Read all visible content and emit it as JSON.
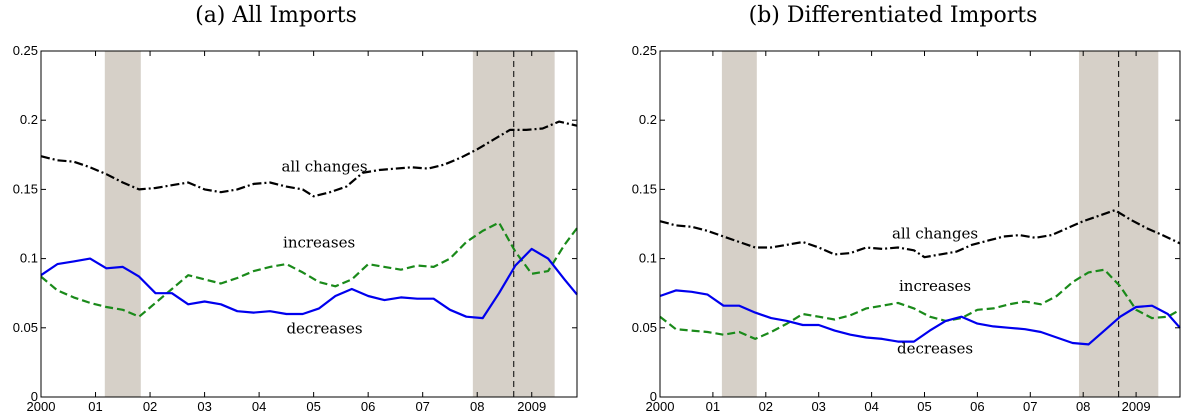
{
  "chart_data": [
    {
      "type": "line",
      "title": "(a)  All Imports",
      "xlim": [
        2000,
        2009.83
      ],
      "ylim": [
        0,
        0.25
      ],
      "yticks": [
        0,
        0.05,
        0.1,
        0.15,
        0.2,
        0.25
      ],
      "ytick_labels": [
        "0",
        "0.05",
        "0.1",
        "0.15",
        "0.2",
        "0.25"
      ],
      "xticks": [
        2000,
        2001,
        2002,
        2003,
        2004,
        2005,
        2006,
        2007,
        2008,
        2009
      ],
      "xtick_labels": [
        "2000",
        "01",
        "02",
        "03",
        "04",
        "05",
        "06",
        "07",
        "08",
        "2009"
      ],
      "shaded_periods": [
        [
          2001.17,
          2001.83
        ],
        [
          2007.92,
          2009.42
        ]
      ],
      "vertical_line": 2008.67,
      "annotations": [
        {
          "text": "all changes",
          "x": 2005.2,
          "y": 0.163
        },
        {
          "text": "increases",
          "x": 2005.1,
          "y": 0.108
        },
        {
          "text": "decreases",
          "x": 2005.2,
          "y": 0.046
        }
      ],
      "series": [
        {
          "key": "all",
          "color": "#000000",
          "style": "dashdot",
          "x": [
            2000,
            2000.3,
            2000.6,
            2000.9,
            2001.2,
            2001.5,
            2001.8,
            2002.1,
            2002.4,
            2002.7,
            2003.0,
            2003.3,
            2003.6,
            2003.9,
            2004.2,
            2004.5,
            2004.8,
            2005.0,
            2005.3,
            2005.6,
            2005.9,
            2006.2,
            2006.5,
            2006.8,
            2007.1,
            2007.4,
            2007.7,
            2008.0,
            2008.3,
            2008.6,
            2008.9,
            2009.2,
            2009.5,
            2009.83
          ],
          "y": [
            0.174,
            0.171,
            0.17,
            0.166,
            0.161,
            0.155,
            0.15,
            0.151,
            0.153,
            0.155,
            0.15,
            0.148,
            0.15,
            0.154,
            0.155,
            0.152,
            0.15,
            0.145,
            0.148,
            0.152,
            0.162,
            0.164,
            0.165,
            0.166,
            0.165,
            0.168,
            0.173,
            0.179,
            0.186,
            0.193,
            0.193,
            0.194,
            0.199,
            0.196
          ]
        },
        {
          "key": "increases",
          "color": "#1a8a1a",
          "style": "dashed",
          "x": [
            2000,
            2000.3,
            2000.6,
            2000.9,
            2001.2,
            2001.5,
            2001.8,
            2002.1,
            2002.4,
            2002.7,
            2003.0,
            2003.3,
            2003.6,
            2003.9,
            2004.2,
            2004.5,
            2004.8,
            2005.1,
            2005.4,
            2005.7,
            2006.0,
            2006.3,
            2006.6,
            2006.9,
            2007.2,
            2007.5,
            2007.8,
            2008.1,
            2008.4,
            2008.7,
            2009.0,
            2009.3,
            2009.6,
            2009.83
          ],
          "y": [
            0.087,
            0.077,
            0.072,
            0.068,
            0.065,
            0.063,
            0.058,
            0.068,
            0.078,
            0.088,
            0.085,
            0.082,
            0.086,
            0.091,
            0.094,
            0.096,
            0.09,
            0.083,
            0.08,
            0.085,
            0.096,
            0.094,
            0.092,
            0.095,
            0.094,
            0.1,
            0.112,
            0.12,
            0.126,
            0.105,
            0.089,
            0.091,
            0.11,
            0.122
          ]
        },
        {
          "key": "decreases",
          "color": "#0000ee",
          "style": "solid",
          "x": [
            2000,
            2000.3,
            2000.6,
            2000.9,
            2001.2,
            2001.5,
            2001.8,
            2002.1,
            2002.4,
            2002.7,
            2003.0,
            2003.3,
            2003.6,
            2003.9,
            2004.2,
            2004.5,
            2004.8,
            2005.1,
            2005.4,
            2005.7,
            2006.0,
            2006.3,
            2006.6,
            2006.9,
            2007.2,
            2007.5,
            2007.8,
            2008.1,
            2008.4,
            2008.7,
            2009.0,
            2009.3,
            2009.6,
            2009.83
          ],
          "y": [
            0.088,
            0.096,
            0.098,
            0.1,
            0.093,
            0.094,
            0.087,
            0.075,
            0.075,
            0.067,
            0.069,
            0.067,
            0.062,
            0.061,
            0.062,
            0.06,
            0.06,
            0.064,
            0.073,
            0.078,
            0.073,
            0.07,
            0.072,
            0.071,
            0.071,
            0.063,
            0.058,
            0.057,
            0.075,
            0.095,
            0.107,
            0.1,
            0.085,
            0.074
          ]
        }
      ]
    },
    {
      "type": "line",
      "title": "(b)  Differentiated Imports",
      "xlim": [
        2000,
        2009.83
      ],
      "ylim": [
        0,
        0.25
      ],
      "yticks": [
        0,
        0.05,
        0.1,
        0.15,
        0.2,
        0.25
      ],
      "ytick_labels": [
        "0",
        "0.05",
        "0.1",
        "0.15",
        "0.2",
        "0.25"
      ],
      "xticks": [
        2000,
        2001,
        2002,
        2003,
        2004,
        2005,
        2006,
        2007,
        2008,
        2009
      ],
      "xtick_labels": [
        "2000",
        "01",
        "02",
        "03",
        "04",
        "05",
        "06",
        "07",
        "08",
        "2009"
      ],
      "shaded_periods": [
        [
          2001.17,
          2001.83
        ],
        [
          2007.92,
          2009.42
        ]
      ],
      "vertical_line": 2008.67,
      "annotations": [
        {
          "text": "all changes",
          "x": 2005.2,
          "y": 0.1145
        },
        {
          "text": "increases",
          "x": 2005.2,
          "y": 0.0765
        },
        {
          "text": "decreases",
          "x": 2005.2,
          "y": 0.0315
        }
      ],
      "series": [
        {
          "key": "all",
          "color": "#000000",
          "style": "dashdot",
          "x": [
            2000,
            2000.3,
            2000.6,
            2000.9,
            2001.2,
            2001.5,
            2001.8,
            2002.1,
            2002.4,
            2002.7,
            2003.0,
            2003.3,
            2003.6,
            2003.9,
            2004.2,
            2004.5,
            2004.8,
            2005.0,
            2005.3,
            2005.6,
            2005.9,
            2006.2,
            2006.5,
            2006.8,
            2007.1,
            2007.4,
            2007.7,
            2008.0,
            2008.3,
            2008.6,
            2008.9,
            2009.2,
            2009.5,
            2009.83
          ],
          "y": [
            0.127,
            0.124,
            0.123,
            0.12,
            0.116,
            0.112,
            0.108,
            0.108,
            0.11,
            0.112,
            0.108,
            0.103,
            0.104,
            0.108,
            0.107,
            0.108,
            0.106,
            0.101,
            0.103,
            0.105,
            0.11,
            0.113,
            0.116,
            0.117,
            0.115,
            0.117,
            0.122,
            0.127,
            0.131,
            0.135,
            0.128,
            0.122,
            0.117,
            0.111
          ]
        },
        {
          "key": "increases",
          "color": "#1a8a1a",
          "style": "dashed",
          "x": [
            2000,
            2000.3,
            2000.6,
            2000.9,
            2001.2,
            2001.5,
            2001.8,
            2002.1,
            2002.4,
            2002.7,
            2003.0,
            2003.3,
            2003.6,
            2003.9,
            2004.2,
            2004.5,
            2004.8,
            2005.1,
            2005.4,
            2005.7,
            2006.0,
            2006.3,
            2006.6,
            2006.9,
            2007.2,
            2007.5,
            2007.8,
            2008.1,
            2008.4,
            2008.7,
            2009.0,
            2009.3,
            2009.6,
            2009.83
          ],
          "y": [
            0.058,
            0.049,
            0.048,
            0.047,
            0.045,
            0.047,
            0.042,
            0.047,
            0.053,
            0.06,
            0.058,
            0.056,
            0.059,
            0.064,
            0.066,
            0.068,
            0.064,
            0.058,
            0.055,
            0.057,
            0.063,
            0.064,
            0.067,
            0.069,
            0.067,
            0.073,
            0.083,
            0.09,
            0.092,
            0.08,
            0.063,
            0.057,
            0.058,
            0.063
          ]
        },
        {
          "key": "decreases",
          "color": "#0000ee",
          "style": "solid",
          "x": [
            2000,
            2000.3,
            2000.6,
            2000.9,
            2001.2,
            2001.5,
            2001.8,
            2002.1,
            2002.4,
            2002.7,
            2003.0,
            2003.3,
            2003.6,
            2003.9,
            2004.2,
            2004.5,
            2004.8,
            2005.1,
            2005.4,
            2005.7,
            2006.0,
            2006.3,
            2006.6,
            2006.9,
            2007.2,
            2007.5,
            2007.8,
            2008.1,
            2008.4,
            2008.7,
            2009.0,
            2009.3,
            2009.6,
            2009.83
          ],
          "y": [
            0.073,
            0.077,
            0.076,
            0.074,
            0.066,
            0.066,
            0.061,
            0.057,
            0.055,
            0.052,
            0.052,
            0.048,
            0.045,
            0.043,
            0.042,
            0.04,
            0.04,
            0.048,
            0.055,
            0.058,
            0.053,
            0.051,
            0.05,
            0.049,
            0.047,
            0.043,
            0.039,
            0.038,
            0.048,
            0.058,
            0.065,
            0.066,
            0.06,
            0.05
          ]
        }
      ]
    }
  ]
}
